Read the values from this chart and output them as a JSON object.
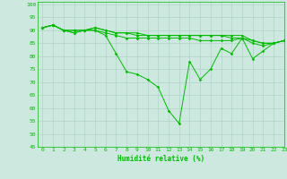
{
  "title": "",
  "xlabel": "Humidité relative (%)",
  "ylabel": "",
  "background_color": "#cde8de",
  "line_color": "#00bb00",
  "grid_color": "#b0d4c8",
  "xlim": [
    -0.5,
    23
  ],
  "ylim": [
    45,
    101
  ],
  "yticks": [
    45,
    50,
    55,
    60,
    65,
    70,
    75,
    80,
    85,
    90,
    95,
    100
  ],
  "xticks": [
    0,
    1,
    2,
    3,
    4,
    5,
    6,
    7,
    8,
    9,
    10,
    11,
    12,
    13,
    14,
    15,
    16,
    17,
    18,
    19,
    20,
    21,
    22,
    23
  ],
  "series": [
    [
      91,
      92,
      90,
      89,
      90,
      90,
      88,
      81,
      74,
      73,
      71,
      68,
      59,
      54,
      78,
      71,
      75,
      83,
      81,
      87,
      79,
      82,
      85,
      86
    ],
    [
      91,
      92,
      90,
      90,
      90,
      91,
      90,
      89,
      89,
      88,
      88,
      88,
      88,
      88,
      88,
      88,
      88,
      88,
      88,
      88,
      86,
      85,
      85,
      86
    ],
    [
      91,
      92,
      90,
      90,
      90,
      91,
      90,
      89,
      89,
      89,
      88,
      88,
      88,
      88,
      88,
      88,
      88,
      88,
      87,
      87,
      86,
      85,
      85,
      86
    ],
    [
      91,
      92,
      90,
      89,
      90,
      90,
      89,
      88,
      87,
      87,
      87,
      87,
      87,
      87,
      87,
      86,
      86,
      86,
      86,
      87,
      85,
      84,
      85,
      86
    ]
  ]
}
